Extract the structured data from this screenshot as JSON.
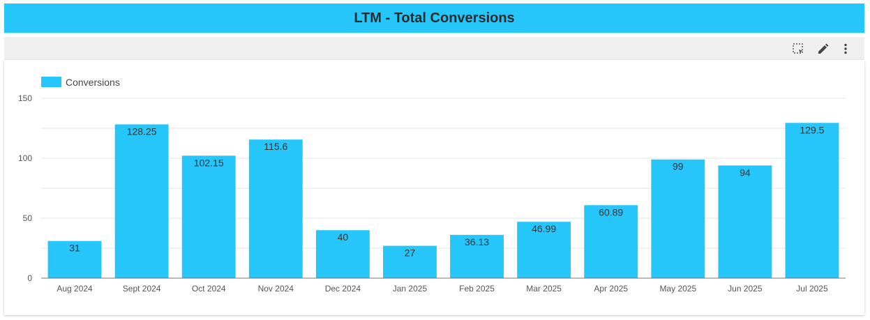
{
  "header": {
    "title": "LTM - Total Conversions"
  },
  "toolbar": {
    "icons": [
      "select-region-icon",
      "edit-icon",
      "more-vert-icon"
    ]
  },
  "colors": {
    "bar": "#26c6fa",
    "grid": "#e3e3e3",
    "axis": "#777777"
  },
  "chart_data": {
    "type": "bar",
    "title": "LTM - Total Conversions",
    "categories": [
      "Aug 2024",
      "Sept 2024",
      "Oct 2024",
      "Nov 2024",
      "Dec 2024",
      "Jan 2025",
      "Feb 2025",
      "Mar 2025",
      "Apr 2025",
      "May 2025",
      "Jun 2025",
      "Jul 2025"
    ],
    "series": [
      {
        "name": "Conversions",
        "values": [
          31,
          128.25,
          102.15,
          115.6,
          40,
          27,
          36.13,
          46.99,
          60.89,
          99,
          94,
          129.5
        ],
        "labels": [
          "31",
          "128.25",
          "102.15",
          "115.6",
          "40",
          "27",
          "36.13",
          "46.99",
          "60.89",
          "99",
          "94",
          "129.5"
        ]
      }
    ],
    "xlabel": "",
    "ylabel": "",
    "ylim": [
      0,
      150
    ],
    "yticks": [
      0,
      50,
      100,
      150
    ],
    "minor_gridlines": [
      25,
      75,
      125
    ],
    "legend": "top-left",
    "grid": true
  }
}
